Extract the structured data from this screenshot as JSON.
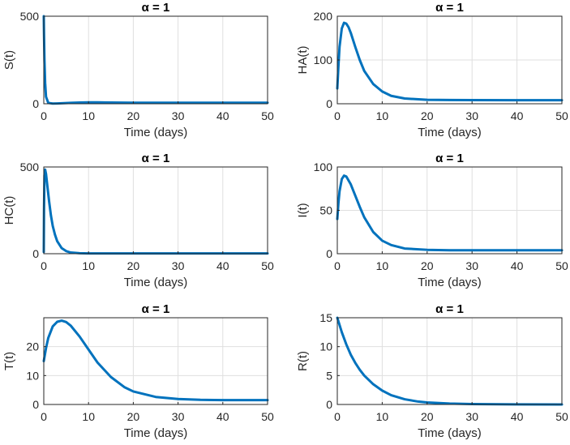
{
  "figure": {
    "colors": {
      "series": "#0072BD",
      "axis": "#262626",
      "grid": "#dfdfdf"
    }
  },
  "chart_data": [
    {
      "type": "line",
      "title": "α = 1",
      "xlabel": "Time (days)",
      "ylabel": "S(t)",
      "xlim": [
        0,
        50
      ],
      "ylim": [
        0,
        500
      ],
      "xticks": [
        0,
        10,
        20,
        30,
        40,
        50
      ],
      "yticks": [
        0,
        500
      ],
      "grid": true,
      "series": [
        {
          "x": [
            0,
            0.05,
            0.15,
            0.3,
            0.5,
            1,
            2,
            3,
            4,
            6,
            8,
            10,
            12,
            15,
            20,
            25,
            30,
            40,
            50
          ],
          "y": [
            500,
            400,
            250,
            120,
            40,
            5,
            1,
            2,
            3,
            5,
            7,
            8,
            8,
            7,
            6,
            6,
            6,
            6,
            6
          ]
        }
      ]
    },
    {
      "type": "line",
      "title": "α = 1",
      "xlabel": "Time (days)",
      "ylabel": "HA(t)",
      "xlim": [
        0,
        50
      ],
      "ylim": [
        0,
        200
      ],
      "xticks": [
        0,
        10,
        20,
        30,
        40,
        50
      ],
      "yticks": [
        0,
        100,
        200
      ],
      "grid": true,
      "series": [
        {
          "x": [
            0,
            0.25,
            0.5,
            1,
            1.5,
            2,
            2.5,
            3,
            4,
            5,
            6,
            8,
            10,
            12,
            15,
            20,
            25,
            30,
            40,
            50
          ],
          "y": [
            35,
            85,
            130,
            172,
            185,
            183,
            175,
            162,
            130,
            100,
            75,
            45,
            28,
            18,
            12,
            9,
            8.5,
            8.3,
            8,
            8
          ]
        }
      ]
    },
    {
      "type": "line",
      "title": "α = 1",
      "xlabel": "Time (days)",
      "ylabel": "HC(t)",
      "xlim": [
        0,
        50
      ],
      "ylim": [
        0,
        500
      ],
      "xticks": [
        0,
        10,
        20,
        30,
        40,
        50
      ],
      "yticks": [
        0,
        500
      ],
      "grid": true,
      "series": [
        {
          "x": [
            0,
            0.05,
            0.15,
            0.3,
            0.5,
            0.8,
            1.2,
            1.6,
            2,
            2.5,
            3,
            4,
            5,
            6,
            8,
            10,
            20,
            30,
            40,
            50
          ],
          "y": [
            10,
            250,
            450,
            485,
            460,
            390,
            300,
            220,
            160,
            110,
            72,
            32,
            15,
            7,
            3,
            2,
            2,
            2,
            2,
            2
          ]
        }
      ]
    },
    {
      "type": "line",
      "title": "α = 1",
      "xlabel": "Time (days)",
      "ylabel": "I(t)",
      "xlim": [
        0,
        50
      ],
      "ylim": [
        0,
        100
      ],
      "xticks": [
        0,
        10,
        20,
        30,
        40,
        50
      ],
      "yticks": [
        0,
        50,
        100
      ],
      "grid": true,
      "series": [
        {
          "x": [
            0,
            0.25,
            0.5,
            1,
            1.5,
            2,
            3,
            4,
            5,
            6,
            8,
            10,
            12,
            15,
            20,
            25,
            30,
            40,
            50
          ],
          "y": [
            40,
            58,
            72,
            86,
            90,
            89,
            80,
            67,
            54,
            42,
            25,
            15,
            10,
            6,
            4.5,
            4,
            4,
            4,
            4
          ]
        }
      ]
    },
    {
      "type": "line",
      "title": "α = 1",
      "xlabel": "Time (days)",
      "ylabel": "T(t)",
      "xlim": [
        0,
        50
      ],
      "ylim": [
        0,
        30
      ],
      "xticks": [
        0,
        10,
        20,
        30,
        40,
        50
      ],
      "yticks": [
        0,
        10,
        20
      ],
      "grid": true,
      "series": [
        {
          "x": [
            0,
            0.5,
            1,
            2,
            3,
            4,
            5,
            6,
            8,
            10,
            12,
            15,
            18,
            20,
            25,
            30,
            35,
            40,
            50
          ],
          "y": [
            15,
            19.5,
            23,
            27,
            28.6,
            29,
            28.5,
            27.3,
            23.5,
            19,
            14.5,
            9.5,
            6,
            4.5,
            2.6,
            1.9,
            1.6,
            1.5,
            1.5
          ]
        }
      ]
    },
    {
      "type": "line",
      "title": "α = 1",
      "xlabel": "Time (days)",
      "ylabel": "R(t)",
      "xlim": [
        0,
        50
      ],
      "ylim": [
        0,
        15
      ],
      "xticks": [
        0,
        10,
        20,
        30,
        40,
        50
      ],
      "yticks": [
        0,
        5,
        10,
        15
      ],
      "grid": true,
      "series": [
        {
          "x": [
            0,
            1,
            2,
            3,
            4,
            5,
            6,
            8,
            10,
            12,
            15,
            18,
            20,
            25,
            30,
            40,
            50
          ],
          "y": [
            15,
            12.5,
            10.4,
            8.6,
            7.2,
            6,
            5,
            3.5,
            2.4,
            1.6,
            0.9,
            0.5,
            0.35,
            0.15,
            0.07,
            0.02,
            0
          ]
        }
      ]
    }
  ]
}
